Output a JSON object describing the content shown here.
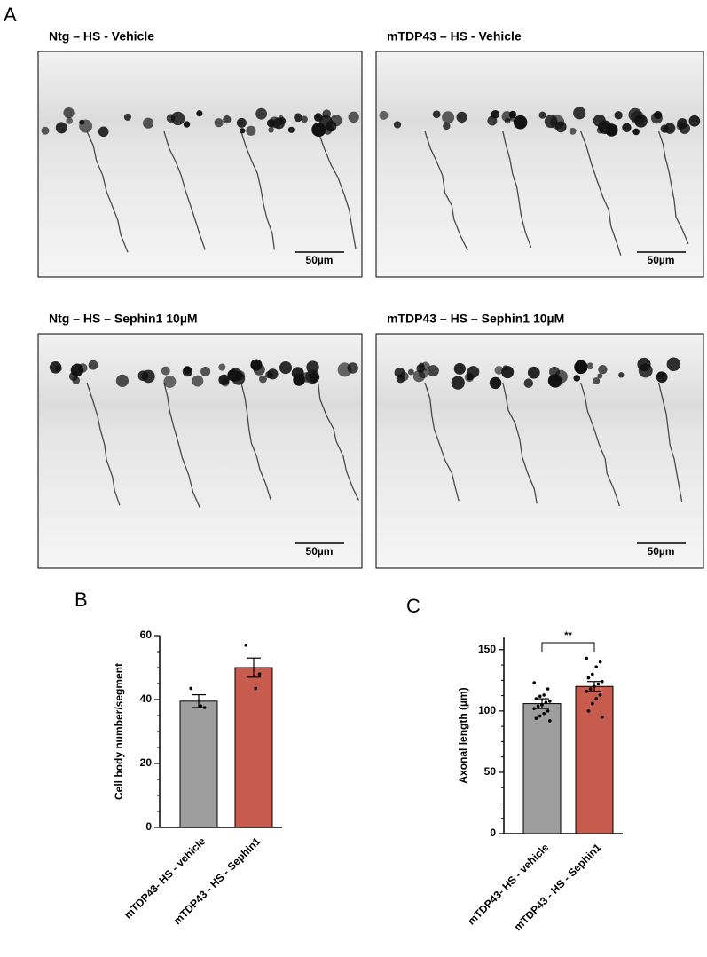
{
  "panels": {
    "a": "A",
    "b": "B",
    "c": "C"
  },
  "images": [
    {
      "caption": "Ntg – HS - Vehicle",
      "scale_bar": "50µm"
    },
    {
      "caption": "mTDP43 – HS - Vehicle",
      "scale_bar": "50µm"
    },
    {
      "caption": "Ntg – HS – Sephin1 10µM",
      "scale_bar": "50µm"
    },
    {
      "caption": "mTDP43 – HS – Sephin1 10µM",
      "scale_bar": "50µm"
    }
  ],
  "chart_data": [
    {
      "type": "bar",
      "ylabel": "Cell body number/segment",
      "categories": [
        "mTDP43- HS - vehicle",
        "mTDP43 - HS - Sephin1"
      ],
      "values": [
        39.5,
        50
      ],
      "errors": [
        2,
        3
      ],
      "points": [
        [
          43.5,
          37.5,
          38
        ],
        [
          57,
          48,
          43.5
        ]
      ],
      "colors": [
        "#9e9e9e",
        "#c75b4e"
      ],
      "ylim": [
        0,
        60
      ],
      "yticks": [
        0,
        20,
        40,
        60
      ]
    },
    {
      "type": "bar",
      "ylabel": "Axonal length (µm)",
      "categories": [
        "mTDP43- HS - vehicle",
        "mTDP43 - HS - Sephin1"
      ],
      "values": [
        106,
        120
      ],
      "errors": [
        4,
        4
      ],
      "points": [
        [
          123,
          118,
          113,
          112,
          110,
          108,
          107,
          105,
          104,
          102,
          100,
          98,
          96,
          94,
          92
        ],
        [
          143,
          140,
          136,
          130,
          127,
          124,
          122,
          120,
          118,
          116,
          113,
          110,
          106,
          100,
          95
        ]
      ],
      "colors": [
        "#9e9e9e",
        "#c75b4e"
      ],
      "annotation": "**",
      "ylim": [
        0,
        160
      ],
      "yticks": [
        0,
        50,
        100,
        150
      ]
    }
  ]
}
